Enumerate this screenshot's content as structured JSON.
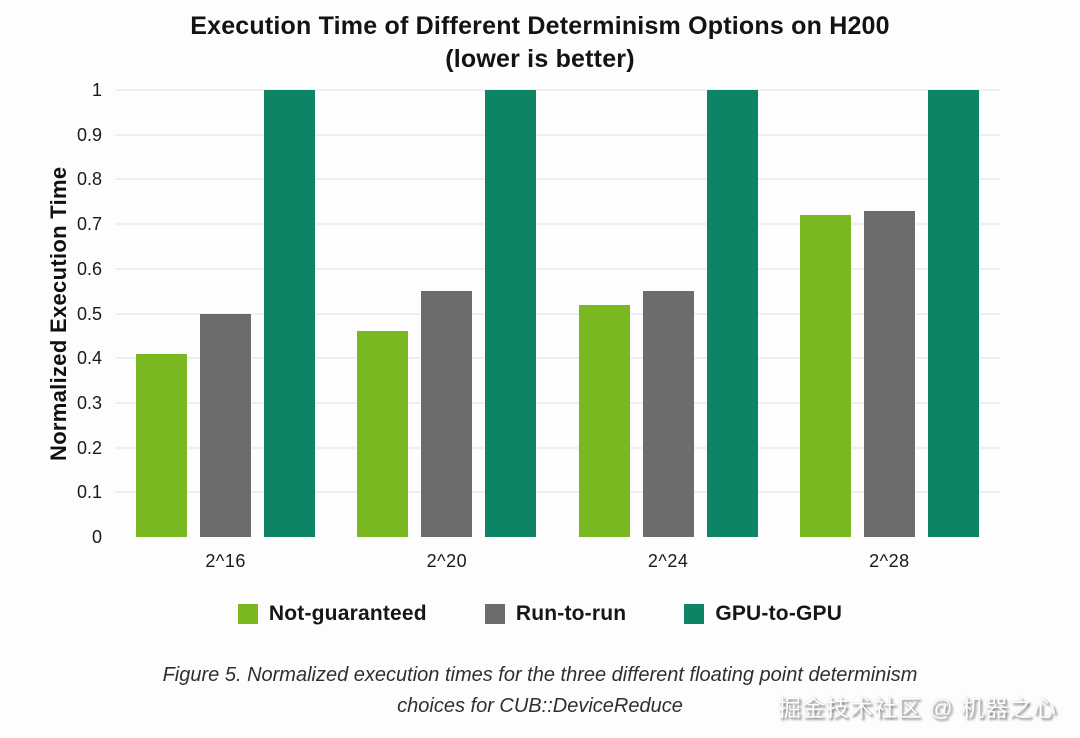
{
  "chart_data": {
    "type": "bar",
    "title_line1": "Execution Time of Different Determinism Options on H200",
    "title_line2": "(lower is better)",
    "ylabel": "Normalized Execution Time",
    "xlabel": "",
    "categories": [
      "2^16",
      "2^20",
      "2^24",
      "2^28"
    ],
    "series": [
      {
        "name": "Not-guaranteed",
        "color": "#79b821",
        "values": [
          0.41,
          0.46,
          0.52,
          0.72
        ]
      },
      {
        "name": "Run-to-run",
        "color": "#6c6c6c",
        "values": [
          0.5,
          0.55,
          0.55,
          0.73
        ]
      },
      {
        "name": "GPU-to-GPU",
        "color": "#0e8467",
        "values": [
          1.0,
          1.0,
          1.0,
          1.0
        ]
      }
    ],
    "ylim": [
      0,
      1
    ],
    "yticks": [
      0,
      0.1,
      0.2,
      0.3,
      0.4,
      0.5,
      0.6,
      0.7,
      0.8,
      0.9,
      1
    ],
    "ytick_labels": [
      "0",
      "0.1",
      "0.2",
      "0.3",
      "0.4",
      "0.5",
      "0.6",
      "0.7",
      "0.8",
      "0.9",
      "1"
    ],
    "grid": "horizontal-only",
    "grid_color": "#efefef",
    "legend_position": "bottom"
  },
  "caption": {
    "line1": "Figure 5.  Normalized execution times for the three different floating point determinism",
    "line2": "choices for CUB::DeviceReduce"
  },
  "watermark": "掘金技术社区 @ 机器之心"
}
